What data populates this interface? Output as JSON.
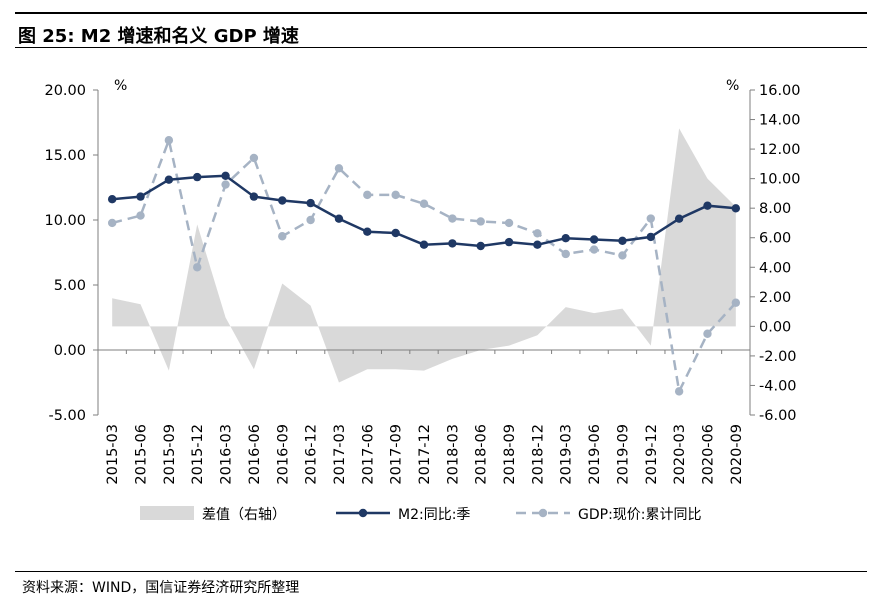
{
  "title": "图 25:  M2 增速和名义 GDP 增速",
  "source": "资料来源：WIND，国信证券经济研究所整理",
  "chart_data": {
    "type": "line",
    "categories": [
      "2015-03",
      "2015-06",
      "2015-09",
      "2015-12",
      "2016-03",
      "2016-06",
      "2016-09",
      "2016-12",
      "2017-03",
      "2017-06",
      "2017-09",
      "2017-12",
      "2018-03",
      "2018-06",
      "2018-09",
      "2018-12",
      "2019-03",
      "2019-06",
      "2019-09",
      "2019-12",
      "2020-03",
      "2020-06",
      "2020-09"
    ],
    "series": [
      {
        "name": "差值（右轴）",
        "type": "area",
        "axis": "right",
        "color": "#d9d9d9",
        "values": [
          1.9,
          1.5,
          -3.0,
          6.9,
          0.6,
          -2.9,
          2.9,
          1.4,
          -3.8,
          -2.9,
          -2.9,
          -3.0,
          -2.2,
          -1.6,
          -1.3,
          -0.6,
          1.3,
          0.9,
          1.2,
          -1.3,
          13.4,
          10.0,
          8.1
        ]
      },
      {
        "name": "M2:同比:季",
        "type": "line",
        "axis": "left",
        "color": "#1f3864",
        "values": [
          11.6,
          11.8,
          13.1,
          13.3,
          13.4,
          11.8,
          11.5,
          11.3,
          10.1,
          9.1,
          9.0,
          8.1,
          8.2,
          8.0,
          8.3,
          8.1,
          8.6,
          8.5,
          8.4,
          8.7,
          10.1,
          11.1,
          10.9
        ]
      },
      {
        "name": "GDP:现价:累计同比",
        "type": "line",
        "axis": "right",
        "color": "#a6b3c4",
        "dash": true,
        "values": [
          7.0,
          7.5,
          12.6,
          4.0,
          9.6,
          11.4,
          6.1,
          7.2,
          10.7,
          8.9,
          8.9,
          8.3,
          7.3,
          7.1,
          7.0,
          6.3,
          4.9,
          5.2,
          4.8,
          7.3,
          -4.4,
          -0.5,
          1.6
        ]
      }
    ],
    "ylim_left": [
      -5,
      20
    ],
    "yticks_left": [
      "20.00",
      "15.00",
      "10.00",
      "5.00",
      "0.00",
      "-5.00"
    ],
    "ylim_right": [
      -6,
      16
    ],
    "yticks_right": [
      "16.00",
      "14.00",
      "12.00",
      "10.00",
      "8.00",
      "6.00",
      "4.00",
      "2.00",
      "0.00",
      "-2.00",
      "-4.00",
      "-6.00"
    ],
    "ylabel_left": "%",
    "ylabel_right": "%",
    "legend_position": "bottom",
    "grid": false
  }
}
